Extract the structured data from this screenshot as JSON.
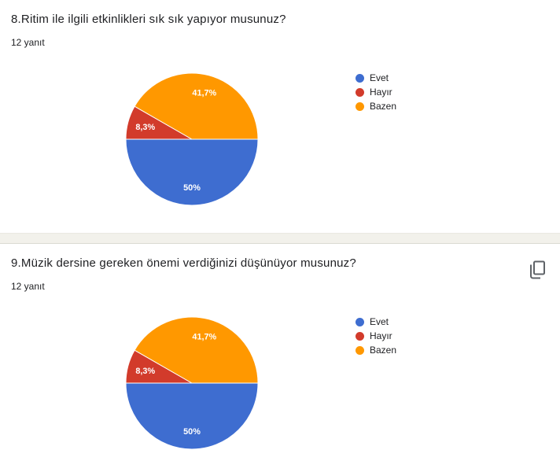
{
  "theme": {
    "title_color": "#202124",
    "text_color": "#202124",
    "divider_color": "#F2F1EB",
    "icon_color": "#5F6368",
    "slice_label_color": "#ffffff",
    "background_color": "#ffffff"
  },
  "chart_data": [
    {
      "type": "pie",
      "title": "8.Ritim ile ilgili etkinlikleri sık sık yapıyor musunuz?",
      "responses_label": "12 yanıt",
      "labels": [
        "Evet",
        "Hayır",
        "Bazen"
      ],
      "values": [
        50,
        8.3,
        41.7
      ],
      "value_labels": [
        "50%",
        "8,3%",
        "41,7%"
      ],
      "colors": [
        "#3E6DD0",
        "#D23B2B",
        "#FF9800"
      ],
      "start_angle": "east",
      "direction": "clockwise",
      "legend_position": "right"
    },
    {
      "type": "pie",
      "title": "9.Müzik dersine gereken önemi verdiğinizi düşünüyor musunuz?",
      "responses_label": "12 yanıt",
      "labels": [
        "Evet",
        "Hayır",
        "Bazen"
      ],
      "values": [
        50,
        8.3,
        41.7
      ],
      "value_labels": [
        "50%",
        "8,3%",
        "41,7%"
      ],
      "colors": [
        "#3E6DD0",
        "#D23B2B",
        "#FF9800"
      ],
      "start_angle": "east",
      "direction": "clockwise",
      "legend_position": "right"
    }
  ]
}
